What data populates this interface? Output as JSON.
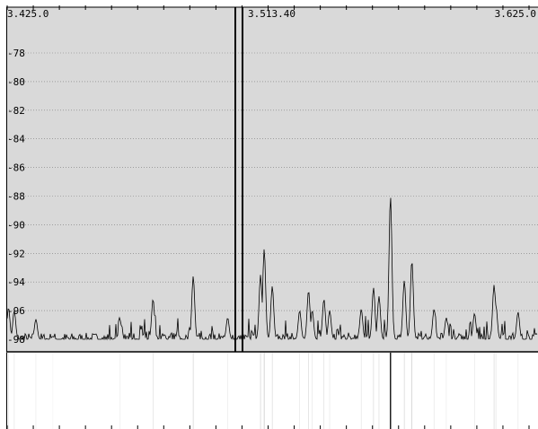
{
  "spectrum": {
    "freq_start": "3.425.0",
    "freq_center": "3.513.40",
    "freq_end": "3.625.0",
    "db_labels": [
      "-78",
      "-80",
      "-82",
      "-84",
      "-86",
      "-88",
      "-90",
      "-92",
      "-94",
      "-96",
      "-98"
    ],
    "colors": {
      "background": "#d9d9d9",
      "grid": "#7a7a7a",
      "trace": "#000000",
      "border": "#000000"
    }
  },
  "waterfall": {
    "background": "#ffffff"
  },
  "chart_data": {
    "type": "line",
    "title": "",
    "xlabel": "",
    "ylabel": "",
    "x_unit": "kHz",
    "xlim": [
      3425.0,
      3625.0
    ],
    "ylim": [
      -98.8,
      -76.2
    ],
    "grid": true,
    "baseline": -98.0,
    "series": [
      {
        "peaks": [
          {
            "x": 3425.5,
            "y": -95.8
          },
          {
            "x": 3427.7,
            "y": -96.0
          },
          {
            "x": 3436.0,
            "y": -96.6
          },
          {
            "x": 3442.5,
            "y": -97.8
          },
          {
            "x": 3468.3,
            "y": -96.7
          },
          {
            "x": 3480.9,
            "y": -95.2
          },
          {
            "x": 3496.3,
            "y": -93.6
          },
          {
            "x": 3509.5,
            "y": -96.5
          },
          {
            "x": 3522.1,
            "y": -93.5
          },
          {
            "x": 3523.5,
            "y": -91.7
          },
          {
            "x": 3526.6,
            "y": -94.3
          },
          {
            "x": 3537.1,
            "y": -96.0
          },
          {
            "x": 3540.5,
            "y": -94.6
          },
          {
            "x": 3541.9,
            "y": -96.0
          },
          {
            "x": 3546.4,
            "y": -95.2
          },
          {
            "x": 3548.6,
            "y": -96.0
          },
          {
            "x": 3560.7,
            "y": -95.9
          },
          {
            "x": 3565.4,
            "y": -94.4
          },
          {
            "x": 3567.5,
            "y": -95.0
          },
          {
            "x": 3571.9,
            "y": -88.0
          },
          {
            "x": 3577.2,
            "y": -93.9
          },
          {
            "x": 3580.1,
            "y": -92.5
          },
          {
            "x": 3588.6,
            "y": -95.9
          },
          {
            "x": 3593.3,
            "y": -96.5
          },
          {
            "x": 3604.1,
            "y": -96.2
          },
          {
            "x": 3611.6,
            "y": -94.2
          },
          {
            "x": 3612.3,
            "y": -95.6
          },
          {
            "x": 3620.8,
            "y": -96.1
          }
        ]
      }
    ]
  }
}
